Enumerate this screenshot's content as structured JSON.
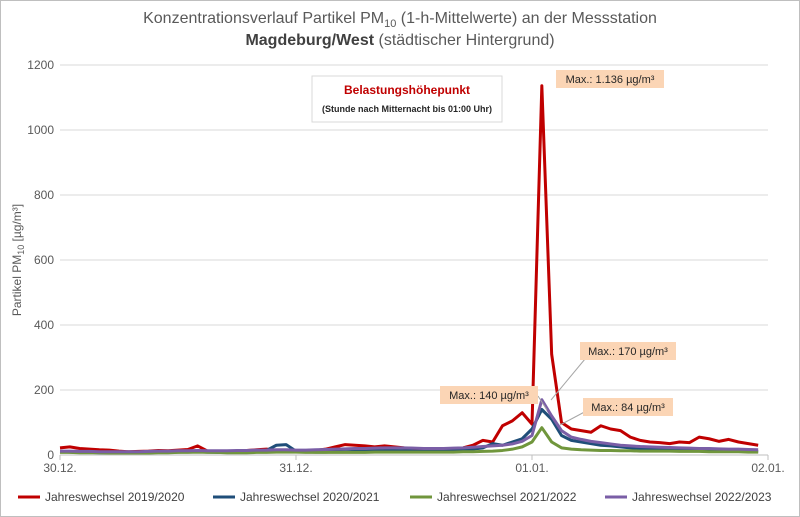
{
  "chart_data": {
    "type": "line",
    "title": {
      "pre": "Konzentrationsverlauf Partikel PM",
      "sub": "10",
      "post": " (1-h-Mittelwerte) an der Messstation",
      "line2_bold": "Magdeburg/West",
      "line2_rest": " (städtischer Hintergrund)"
    },
    "ylabel": {
      "pre": "Partikel PM",
      "sub": "10",
      "post": " [µg/m³]"
    },
    "ylim": [
      0,
      1200
    ],
    "yticks": [
      0,
      200,
      400,
      600,
      800,
      1000,
      1200
    ],
    "xlim": [
      0,
      72
    ],
    "xticks": [
      {
        "x": 0,
        "label": "30.12."
      },
      {
        "x": 24,
        "label": "31.12."
      },
      {
        "x": 48,
        "label": "01.01."
      },
      {
        "x": 72,
        "label": "02.01."
      }
    ],
    "grid": "horizontal",
    "legend_position": "bottom",
    "series": [
      {
        "name": "Jahreswechsel 2019/2020",
        "color": "#c00000",
        "values": [
          22,
          25,
          20,
          18,
          16,
          15,
          12,
          10,
          11,
          12,
          14,
          13,
          15,
          17,
          28,
          12,
          10,
          9,
          11,
          14,
          16,
          18,
          15,
          14,
          13,
          12,
          14,
          18,
          25,
          32,
          30,
          28,
          25,
          28,
          25,
          22,
          20,
          18,
          16,
          15,
          18,
          22,
          30,
          45,
          40,
          90,
          105,
          130,
          95,
          1136,
          310,
          100,
          80,
          75,
          70,
          90,
          80,
          75,
          55,
          45,
          40,
          38,
          35,
          40,
          38,
          55,
          50,
          42,
          48,
          40,
          35,
          30
        ]
      },
      {
        "name": "Jahreswechsel 2020/2021",
        "color": "#1f4e79",
        "values": [
          10,
          9,
          8,
          8,
          7,
          7,
          6,
          6,
          6,
          7,
          8,
          8,
          9,
          10,
          10,
          9,
          8,
          8,
          9,
          10,
          12,
          14,
          30,
          32,
          12,
          10,
          9,
          9,
          10,
          10,
          11,
          12,
          13,
          14,
          14,
          13,
          12,
          12,
          12,
          13,
          14,
          15,
          18,
          22,
          35,
          30,
          40,
          50,
          80,
          140,
          110,
          60,
          45,
          40,
          35,
          30,
          28,
          25,
          22,
          20,
          20,
          19,
          18,
          17,
          16,
          15,
          16,
          15,
          14,
          13,
          12,
          10
        ]
      },
      {
        "name": "Jahreswechsel 2021/2022",
        "color": "#70963c",
        "values": [
          8,
          8,
          7,
          7,
          7,
          6,
          6,
          6,
          6,
          6,
          7,
          7,
          8,
          8,
          9,
          8,
          8,
          7,
          7,
          7,
          8,
          8,
          9,
          9,
          9,
          8,
          8,
          8,
          8,
          8,
          8,
          8,
          9,
          9,
          9,
          9,
          9,
          9,
          9,
          9,
          9,
          10,
          10,
          11,
          12,
          14,
          18,
          25,
          40,
          84,
          40,
          22,
          18,
          16,
          15,
          14,
          14,
          13,
          13,
          12,
          12,
          12,
          12,
          11,
          11,
          11,
          10,
          10,
          10,
          10,
          9,
          9
        ]
      },
      {
        "name": "Jahreswechsel 2022/2023",
        "color": "#7a5ea6",
        "values": [
          12,
          12,
          11,
          11,
          10,
          10,
          10,
          10,
          10,
          11,
          12,
          12,
          13,
          13,
          14,
          13,
          13,
          13,
          14,
          14,
          15,
          15,
          16,
          16,
          15,
          15,
          16,
          17,
          18,
          19,
          20,
          20,
          21,
          22,
          22,
          22,
          21,
          20,
          20,
          20,
          21,
          22,
          24,
          26,
          28,
          30,
          34,
          42,
          60,
          170,
          120,
          75,
          55,
          48,
          42,
          38,
          34,
          30,
          28,
          26,
          25,
          24,
          23,
          22,
          21,
          20,
          20,
          19,
          18,
          18,
          17,
          16
        ]
      }
    ],
    "annotations": {
      "headline": "Belastungshöhepunkt",
      "subline": "(Stunde nach Mitternacht bis  01:00 Uhr)",
      "max_labels": [
        {
          "text": "Max.: 1.136 µg/m³",
          "series": 0,
          "x": 49,
          "y": 1136
        },
        {
          "text": "Max.: 170 µg/m³",
          "series": 3,
          "x": 49,
          "y": 170
        },
        {
          "text": "Max.: 140 µg/m³",
          "series": 1,
          "x": 49,
          "y": 140
        },
        {
          "text": "Max.: 84 µg/m³",
          "series": 2,
          "x": 49,
          "y": 84
        }
      ]
    }
  }
}
